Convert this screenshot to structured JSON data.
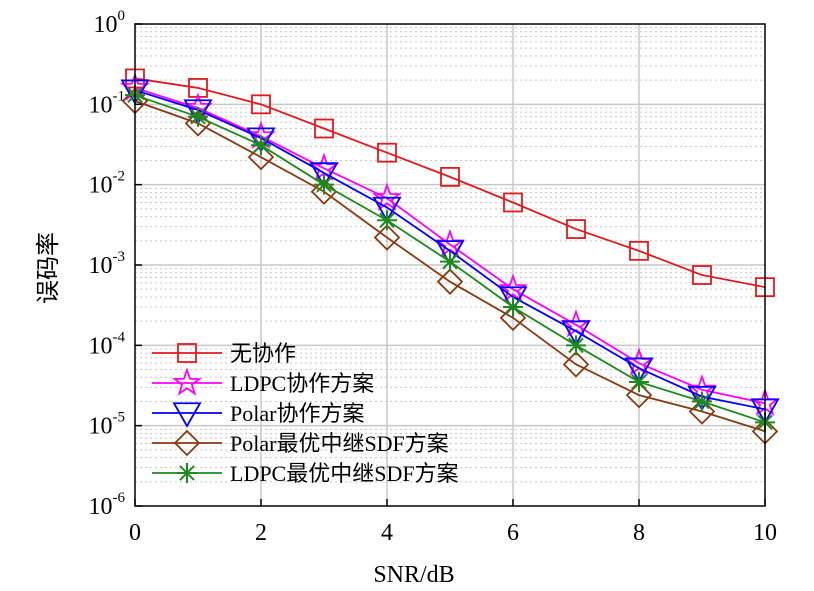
{
  "chart_data": {
    "type": "line",
    "xlabel": "SNR/dB",
    "ylabel": "误码率",
    "x": [
      0,
      1,
      2,
      3,
      4,
      5,
      6,
      7,
      8,
      9,
      10
    ],
    "xlim": [
      0,
      10
    ],
    "ylim": [
      1e-06,
      1
    ],
    "yscale": "log",
    "grid": true,
    "legend_position": "bottom-left",
    "x_ticks": [
      "0",
      "2",
      "4",
      "6",
      "8",
      "10"
    ],
    "y_ticks": [
      {
        "base": "10",
        "exp": "0"
      },
      {
        "base": "10",
        "exp": "-1"
      },
      {
        "base": "10",
        "exp": "-2"
      },
      {
        "base": "10",
        "exp": "-3"
      },
      {
        "base": "10",
        "exp": "-4"
      },
      {
        "base": "10",
        "exp": "-5"
      },
      {
        "base": "10",
        "exp": "-6"
      }
    ],
    "series": [
      {
        "name": "无协作",
        "color": "#e31a1c",
        "marker": "square",
        "values": [
          0.21,
          0.16,
          0.1,
          0.05,
          0.025,
          0.0125,
          0.006,
          0.0028,
          0.0015,
          0.00075,
          0.00053
        ]
      },
      {
        "name": "LDPC协作方案",
        "color": "#ff00ff",
        "marker": "star5",
        "values": [
          0.16,
          0.09,
          0.04,
          0.016,
          0.0068,
          0.0018,
          0.0005,
          0.00018,
          6e-05,
          2.8e-05,
          1.9e-05
        ]
      },
      {
        "name": "Polar协作方案",
        "color": "#0000ff",
        "marker": "triangle-down",
        "values": [
          0.15,
          0.085,
          0.038,
          0.014,
          0.0052,
          0.0015,
          0.0004,
          0.00015,
          5.2e-05,
          2.3e-05,
          1.6e-05
        ]
      },
      {
        "name": "Polar最优中继SDF方案",
        "color": "#8b3a0f",
        "marker": "diamond",
        "values": [
          0.11,
          0.058,
          0.022,
          0.0082,
          0.0022,
          0.00062,
          0.00022,
          5.8e-05,
          2.4e-05,
          1.5e-05,
          8.5e-06
        ]
      },
      {
        "name": "LDPC最优中继SDF方案",
        "color": "#1e8a1e",
        "marker": "asterisk",
        "values": [
          0.13,
          0.07,
          0.031,
          0.01,
          0.0036,
          0.0011,
          0.0003,
          0.0001,
          3.5e-05,
          2e-05,
          1.1e-05
        ]
      }
    ]
  }
}
